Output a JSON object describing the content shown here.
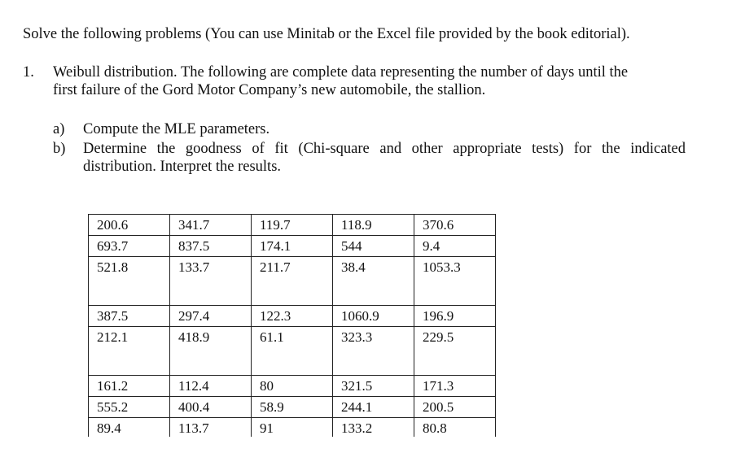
{
  "intro": "Solve the following problems (You can use Minitab or the Excel file provided by the book editorial).",
  "question": {
    "number": "1.",
    "line1": "Weibull distribution. The following are complete data representing the number of days until the",
    "line2": "first failure of the Gord Motor Company’s new automobile, the stallion."
  },
  "subitems": [
    {
      "label": "a)",
      "lines": [
        "Compute the MLE parameters."
      ]
    },
    {
      "label": "b)",
      "lines": [
        "Determine the goodness of fit (Chi-square and other appropriate tests) for the indicated",
        "distribution. Interpret the results."
      ]
    }
  ],
  "table": {
    "rows": [
      [
        "200.6",
        "341.7",
        "119.7",
        "118.9",
        "370.6"
      ],
      [
        "693.7",
        "837.5",
        "174.1",
        "544",
        "9.4"
      ],
      [
        "521.8",
        "133.7",
        "211.7",
        "38.4",
        "1053.3"
      ],
      [
        "387.5",
        "297.4",
        "122.3",
        "1060.9",
        "196.9"
      ],
      [
        "212.1",
        "418.9",
        "61.1",
        "323.3",
        "229.5"
      ],
      [
        "161.2",
        "112.4",
        "80",
        "321.5",
        "171.3"
      ],
      [
        "555.2",
        "400.4",
        "58.9",
        "244.1",
        "200.5"
      ],
      [
        "89.4",
        "113.7",
        "91",
        "133.2",
        "80.8"
      ]
    ]
  }
}
